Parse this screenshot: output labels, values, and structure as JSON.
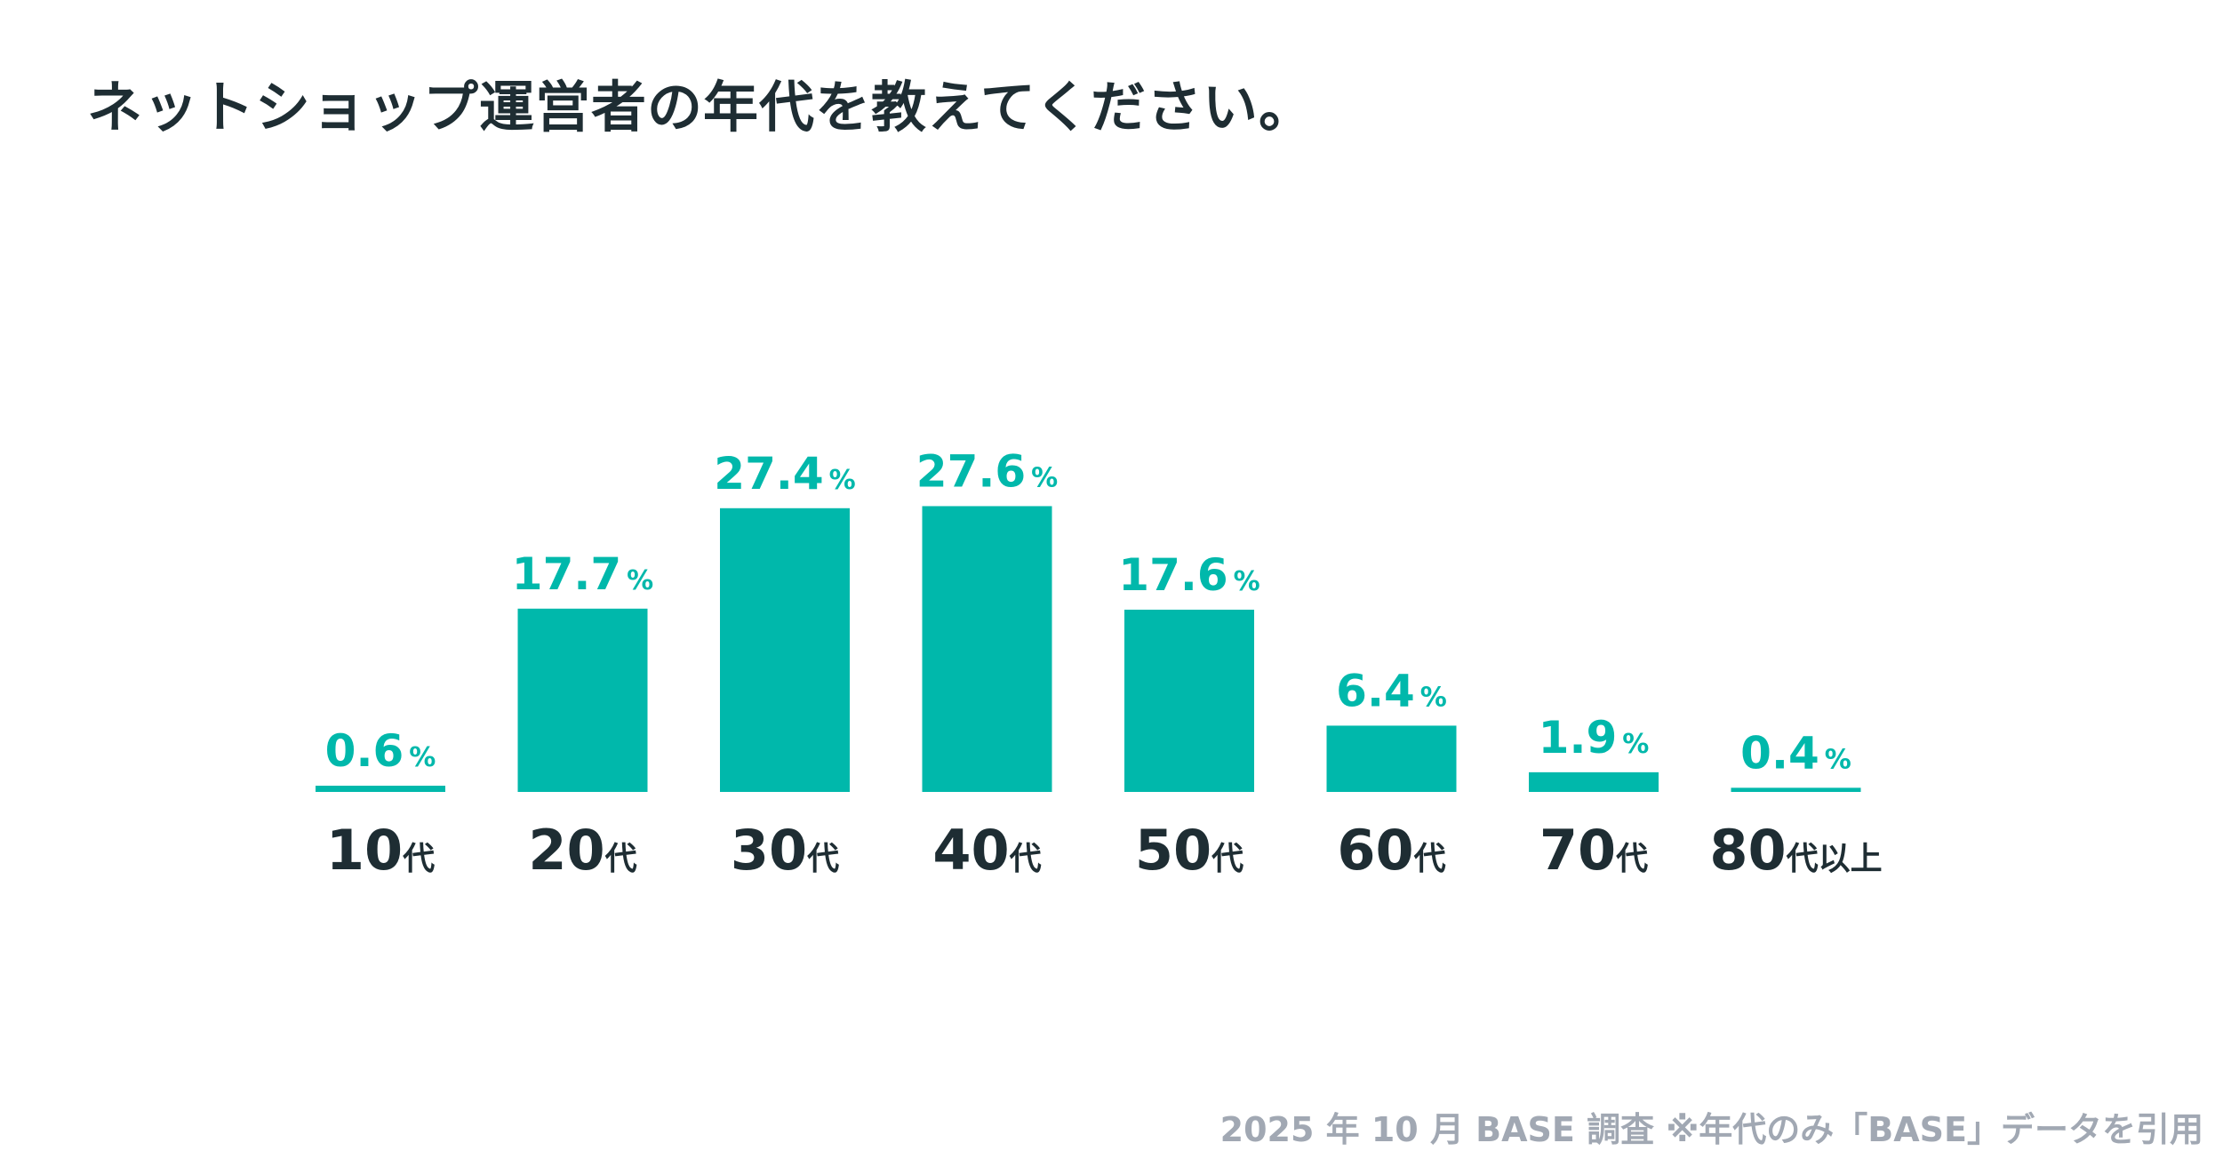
{
  "title": "ネットショップ運営者の年代を教えてください。",
  "footnote": "2025 年 10 月 BASE 調査 ※年代のみ「BASE」データを引用",
  "colors": {
    "bar": "#00b8ab",
    "value_text": "#00b8ab",
    "category_text": "#1e2d33",
    "title_text": "#1e2d33",
    "footnote_text": "#a1a8b3"
  },
  "chart_data": {
    "type": "bar",
    "title": "ネットショップ運営者の年代を教えてください。",
    "categories": [
      {
        "number": "10",
        "suffix": "代"
      },
      {
        "number": "20",
        "suffix": "代"
      },
      {
        "number": "30",
        "suffix": "代"
      },
      {
        "number": "40",
        "suffix": "代"
      },
      {
        "number": "50",
        "suffix": "代"
      },
      {
        "number": "60",
        "suffix": "代"
      },
      {
        "number": "70",
        "suffix": "代"
      },
      {
        "number": "80",
        "suffix": "代以上"
      }
    ],
    "values": [
      0.6,
      17.7,
      27.4,
      27.6,
      17.6,
      6.4,
      1.9,
      0.4
    ],
    "value_labels": [
      "0.6",
      "17.7",
      "27.4",
      "27.6",
      "17.6",
      "6.4",
      "1.9",
      "0.4"
    ],
    "unit": "%",
    "xlabel": "",
    "ylabel": "",
    "grid": false,
    "legend": false
  }
}
